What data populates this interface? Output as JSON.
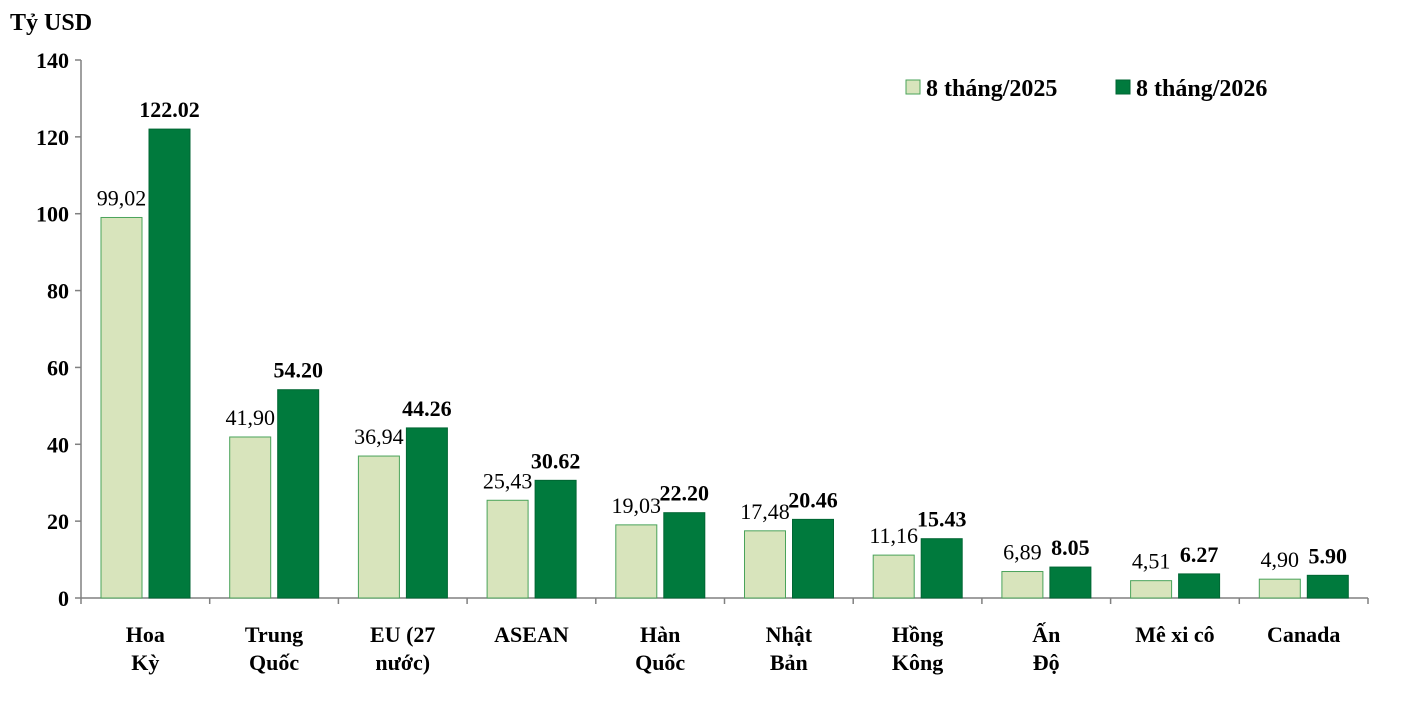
{
  "chart_data": {
    "type": "bar",
    "unit_label": "Tỷ USD",
    "ylim": [
      0,
      140
    ],
    "yticks": [
      "0",
      "20",
      "40",
      "60",
      "80",
      "100",
      "120",
      "140"
    ],
    "legend_position": "top-right",
    "categories": [
      [
        "Hoa",
        "Kỳ"
      ],
      [
        "Trung",
        "Quốc"
      ],
      [
        "EU (27",
        "nước)"
      ],
      [
        "ASEAN"
      ],
      [
        "Hàn",
        "Quốc"
      ],
      [
        "Nhật",
        "Bản"
      ],
      [
        "Hồng",
        "Kông"
      ],
      [
        "Ấn",
        "Độ"
      ],
      [
        "Mê xi cô"
      ],
      [
        "Canada"
      ]
    ],
    "series": [
      {
        "name": "8 tháng/2025",
        "color": "#d8e4bc",
        "values": [
          99.02,
          41.9,
          36.94,
          25.43,
          19.03,
          17.48,
          11.16,
          6.89,
          4.51,
          4.9
        ],
        "labels": [
          "99,02",
          "41,90",
          "36,94",
          "25,43",
          "19,03",
          "17,48",
          "11,16",
          "6,89",
          "4,51",
          "4,90"
        ]
      },
      {
        "name": "8 tháng/2026",
        "color": "#007a3d",
        "values": [
          122.02,
          54.2,
          44.26,
          30.62,
          22.2,
          20.46,
          15.43,
          8.05,
          6.27,
          5.9
        ],
        "labels": [
          "122.02",
          "54.20",
          "44.26",
          "30.62",
          "22.20",
          "20.46",
          "15.43",
          "8.05",
          "6.27",
          "5.90"
        ]
      }
    ]
  }
}
